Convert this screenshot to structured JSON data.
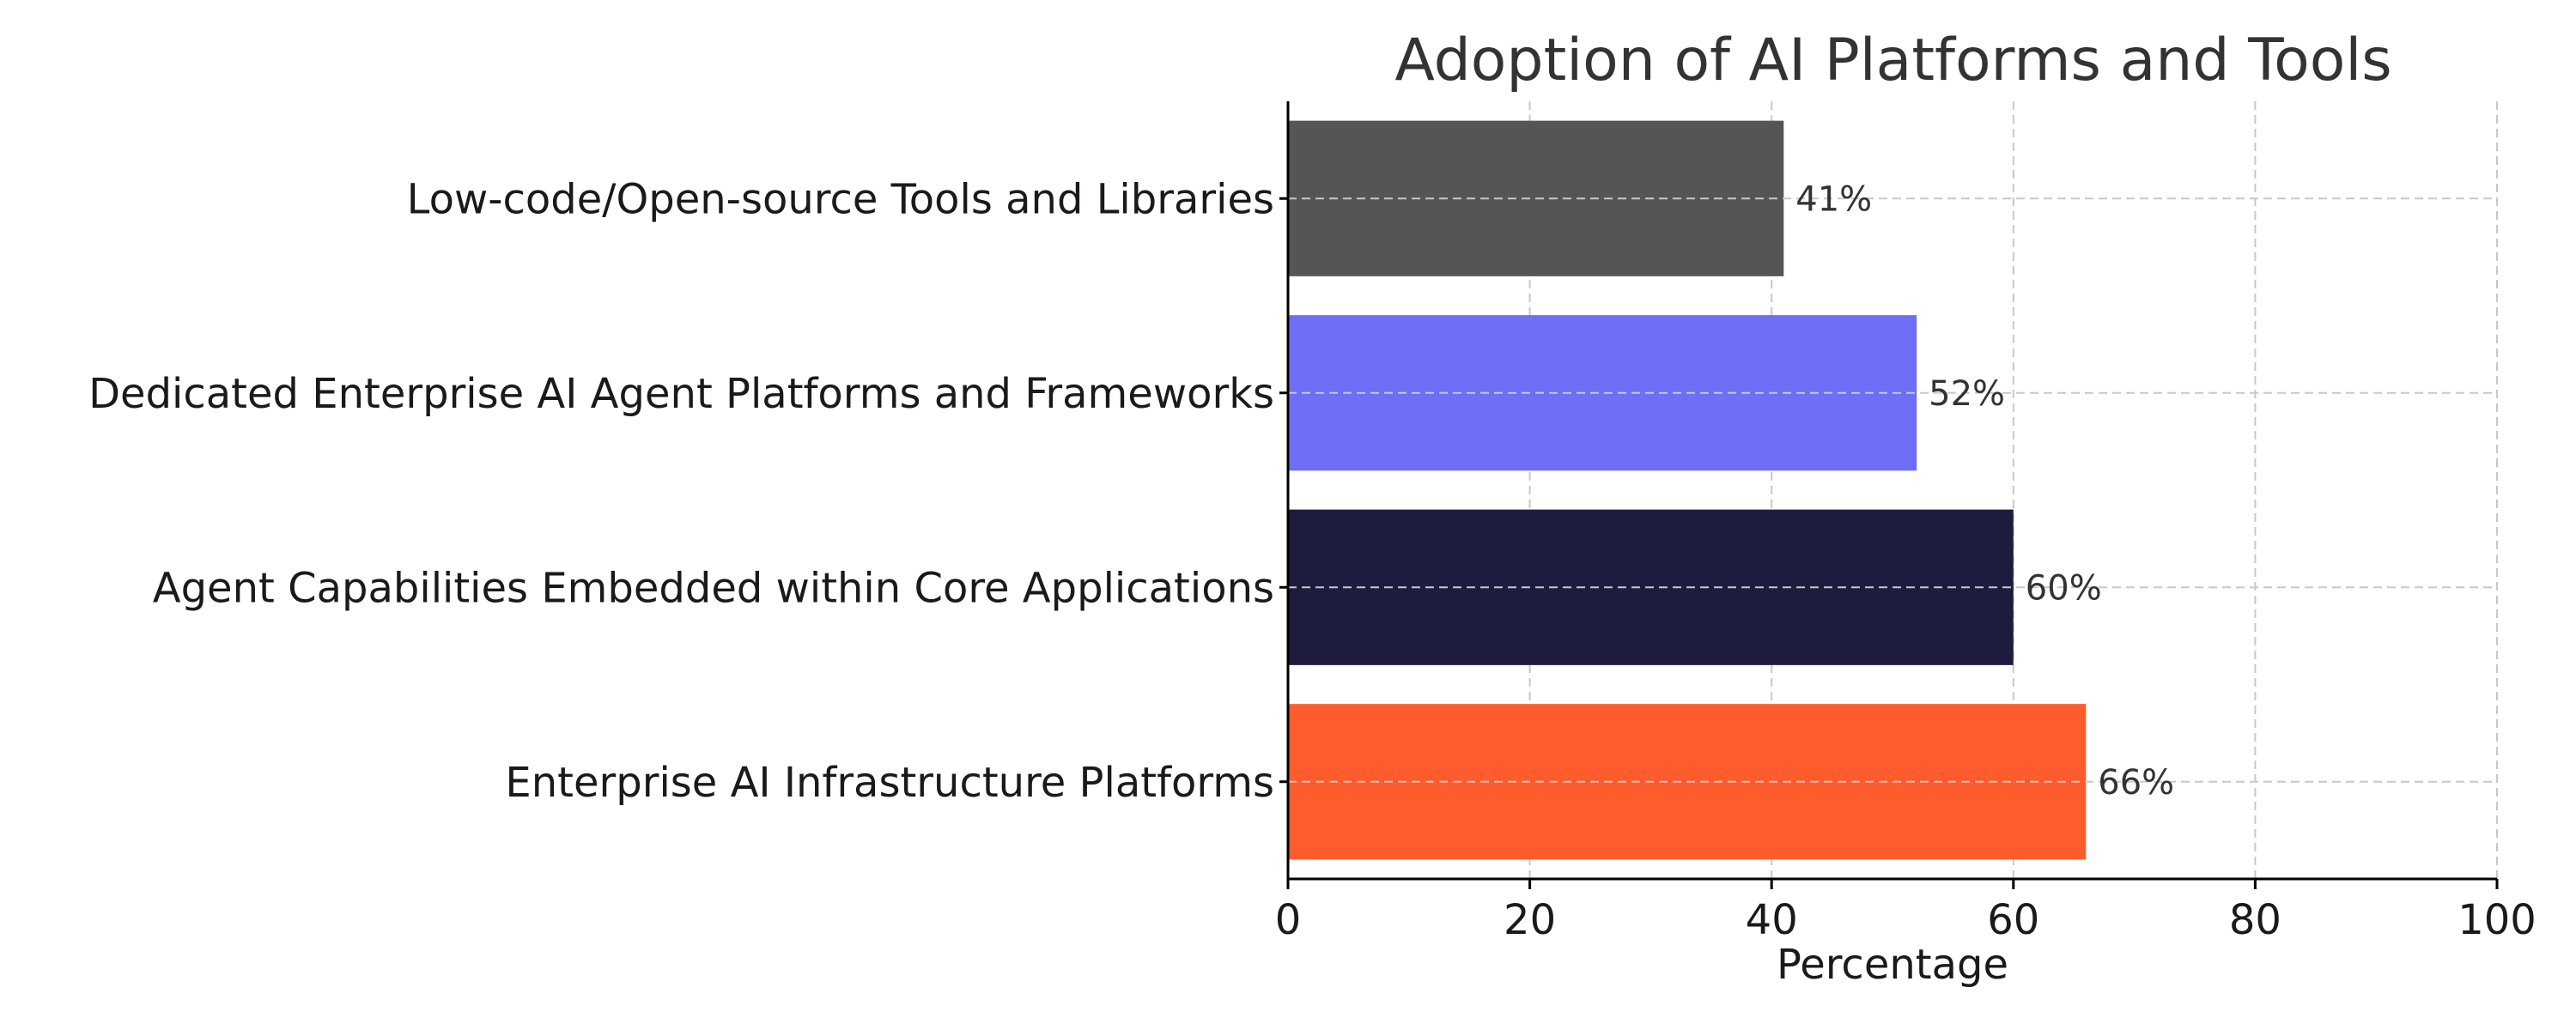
{
  "chart_data": {
    "type": "bar",
    "orientation": "horizontal",
    "title": "Adoption of AI Platforms and Tools",
    "xlabel": "Percentage",
    "ylabel": "",
    "xlim": [
      0,
      100
    ],
    "xticks": [
      0,
      20,
      40,
      60,
      80,
      100
    ],
    "grid": true,
    "categories": [
      "Enterprise AI Infrastructure Platforms",
      "Agent Capabilities Embedded within Core Applications",
      "Dedicated Enterprise AI Agent Platforms and Frameworks",
      "Low-code/Open-source Tools and Libraries"
    ],
    "values": [
      66,
      60,
      52,
      41
    ],
    "value_labels": [
      "66%",
      "60%",
      "52%",
      "41%"
    ],
    "colors": [
      "#ff5c2e",
      "#1e1c3e",
      "#6e6ef6",
      "#555555"
    ]
  }
}
